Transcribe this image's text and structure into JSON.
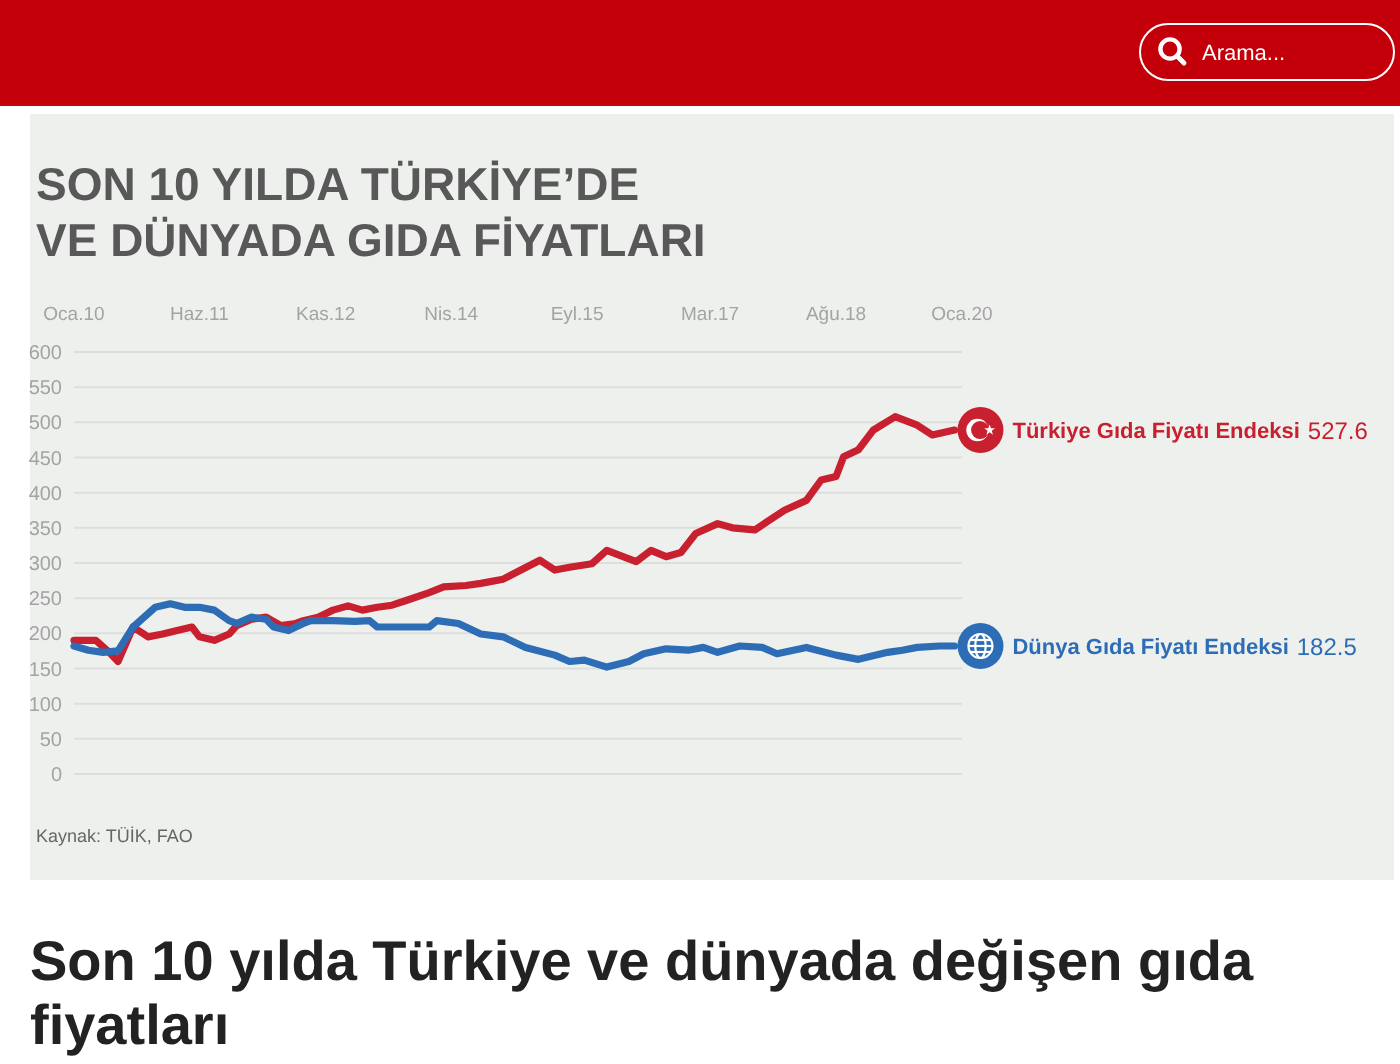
{
  "chart_data": {
    "type": "line",
    "title": "SON 10 YILDA TÜRKİYE’DE\nVE DÜNYADA GIDA FİYATLARI",
    "xlim": [
      "2010-01",
      "2020-01"
    ],
    "xticks": [
      {
        "value": "2010-01",
        "label": "Oca.10"
      },
      {
        "value": "2011-06",
        "label": "Haz.11"
      },
      {
        "value": "2012-11",
        "label": "Kas.12"
      },
      {
        "value": "2014-04",
        "label": "Nis.14"
      },
      {
        "value": "2015-09",
        "label": "Eyl.15"
      },
      {
        "value": "2017-03",
        "label": "Mar.17"
      },
      {
        "value": "2018-08",
        "label": "Ağu.18"
      },
      {
        "value": "2020-01",
        "label": "Oca.20"
      }
    ],
    "ylim": [
      0,
      600
    ],
    "yticks": [
      0,
      50,
      100,
      150,
      200,
      250,
      300,
      350,
      400,
      450,
      500,
      550,
      600
    ],
    "grid": "y",
    "legend": "right",
    "series": [
      {
        "name": "Türkiye Gıda Fiyatı Endeksi",
        "color": "#c8202f",
        "x": [
          "2010-01",
          "2010-04",
          "2010-06",
          "2010-07",
          "2010-09",
          "2010-11",
          "2011-01",
          "2011-03",
          "2011-05",
          "2011-06",
          "2011-08",
          "2011-10",
          "2011-11",
          "2012-01",
          "2012-03",
          "2012-05",
          "2012-07",
          "2012-08",
          "2012-10",
          "2012-12",
          "2013-02",
          "2013-04",
          "2013-06",
          "2013-08",
          "2013-10",
          "2014-01",
          "2014-03",
          "2014-06",
          "2014-08",
          "2014-11",
          "2015-04",
          "2015-06",
          "2015-08",
          "2015-11",
          "2016-01",
          "2016-05",
          "2016-07",
          "2016-09",
          "2016-11",
          "2017-01",
          "2017-04",
          "2017-06",
          "2017-09",
          "2017-11",
          "2018-01",
          "2018-04",
          "2018-06",
          "2018-08",
          "2018-09",
          "2018-11",
          "2019-01",
          "2019-04",
          "2019-07",
          "2019-09",
          "2019-12"
        ],
        "values": [
          190,
          190,
          171,
          160,
          209,
          195,
          199,
          204,
          209,
          195,
          190,
          199,
          211,
          220,
          223,
          211,
          214,
          218,
          223,
          233,
          239,
          233,
          237,
          240,
          247,
          258,
          266,
          268,
          271,
          277,
          304,
          290,
          294,
          299,
          318,
          302,
          318,
          309,
          315,
          342,
          356,
          350,
          347,
          361,
          375,
          389,
          418,
          423,
          451,
          461,
          489,
          508,
          496,
          482,
          489
        ]
      },
      {
        "name": "Dünya Gıda Fiyatı Endeksi",
        "color": "#2d6db5",
        "x": [
          "2010-01",
          "2010-03",
          "2010-05",
          "2010-07",
          "2010-09",
          "2010-12",
          "2011-02",
          "2011-04",
          "2011-06",
          "2011-08",
          "2011-10",
          "2011-11",
          "2012-01",
          "2012-03",
          "2012-04",
          "2012-06",
          "2012-08",
          "2012-09",
          "2012-12",
          "2013-03",
          "2013-05",
          "2013-06",
          "2013-09",
          "2014-01",
          "2014-02",
          "2014-05",
          "2014-08",
          "2014-11",
          "2015-02",
          "2015-06",
          "2015-08",
          "2015-10",
          "2016-01",
          "2016-04",
          "2016-06",
          "2016-09",
          "2016-12",
          "2017-02",
          "2017-04",
          "2017-07",
          "2017-10",
          "2017-12",
          "2018-04",
          "2018-08",
          "2018-11",
          "2019-03",
          "2019-05",
          "2019-07",
          "2019-10",
          "2019-12"
        ],
        "values": [
          182,
          176,
          173,
          175,
          209,
          237,
          242,
          237,
          237,
          233,
          218,
          214,
          223,
          220,
          209,
          204,
          214,
          218,
          218,
          217,
          218,
          209,
          209,
          209,
          218,
          214,
          199,
          195,
          180,
          169,
          160,
          162,
          152,
          160,
          171,
          178,
          176,
          180,
          173,
          182,
          180,
          171,
          180,
          169,
          163,
          173,
          176,
          180,
          182,
          182
        ]
      }
    ],
    "annotations": [
      "527.6",
      "182.5",
      "Kaynak: TÜİK, FAO",
      "Son 10 yılda Türkiye ve dünyada değişen gıda fiyatları",
      "Arama..."
    ]
  }
}
